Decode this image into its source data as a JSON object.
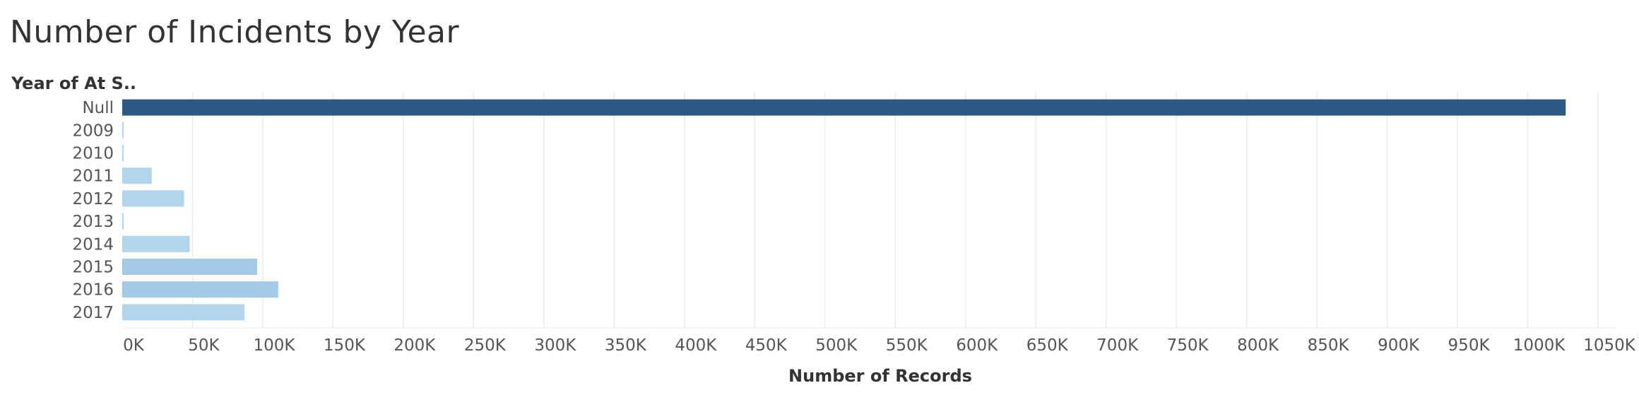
{
  "chart_data": {
    "type": "bar",
    "orientation": "horizontal",
    "title": "Number of Incidents by Year",
    "row_header": "Year of At S..",
    "xlabel": "Number of Records",
    "categories": [
      "Null",
      "2009",
      "2010",
      "2011",
      "2012",
      "2013",
      "2014",
      "2015",
      "2016",
      "2017"
    ],
    "values": [
      1027000,
      800,
      500,
      21000,
      44000,
      500,
      48000,
      96000,
      111000,
      87000
    ],
    "xlim": [
      0,
      1050000
    ],
    "xticks": [
      0,
      50000,
      100000,
      150000,
      200000,
      250000,
      300000,
      350000,
      400000,
      450000,
      500000,
      550000,
      600000,
      650000,
      700000,
      750000,
      800000,
      850000,
      900000,
      950000,
      1000000,
      1050000
    ],
    "xtick_labels": [
      "0K",
      "50K",
      "100K",
      "150K",
      "200K",
      "250K",
      "300K",
      "350K",
      "400K",
      "450K",
      "500K",
      "550K",
      "600K",
      "650K",
      "700K",
      "750K",
      "800K",
      "850K",
      "900K",
      "950K",
      "1000K",
      "1050K"
    ],
    "grid": true,
    "colors": {
      "highlight_bar": "#2c5985",
      "bar_scale": [
        "#b2d5ee",
        "#a3cbe8"
      ],
      "gridline": "#ececec"
    }
  }
}
